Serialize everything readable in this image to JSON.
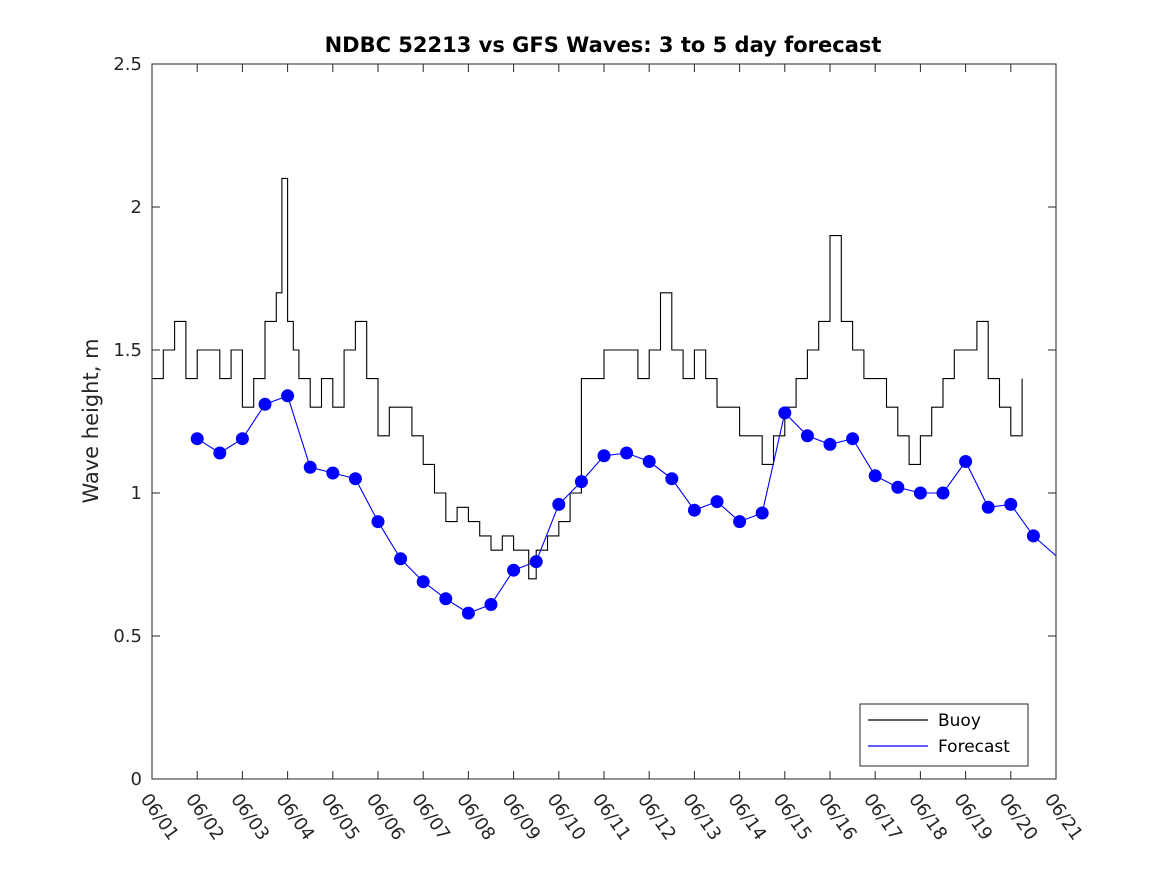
{
  "chart_data": {
    "type": "line",
    "title": "NDBC 52213 vs GFS Waves: 3 to 5 day forecast",
    "xlabel": "",
    "ylabel": "Wave height, m",
    "xlim": [
      "06/01",
      "06/21"
    ],
    "ylim": [
      0,
      2.5
    ],
    "xticks": [
      "06/01",
      "06/02",
      "06/03",
      "06/04",
      "06/05",
      "06/06",
      "06/07",
      "06/08",
      "06/09",
      "06/10",
      "06/11",
      "06/12",
      "06/13",
      "06/14",
      "06/15",
      "06/16",
      "06/17",
      "06/18",
      "06/19",
      "06/20",
      "06/21"
    ],
    "yticks": [
      "0",
      "0.5",
      "1",
      "1.5",
      "2",
      "2.5"
    ],
    "grid": false,
    "legend_position": "bottom-right",
    "series": [
      {
        "name": "Buoy",
        "color": "#000000",
        "style": "line",
        "x": [
          "06/01 00:00",
          "06/01 06:00",
          "06/01 12:00",
          "06/01 18:00",
          "06/02 00:00",
          "06/02 06:00",
          "06/02 12:00",
          "06/02 18:00",
          "06/03 00:00",
          "06/03 06:00",
          "06/03 12:00",
          "06/03 18:00",
          "06/03 21:00",
          "06/04 00:00",
          "06/04 03:00",
          "06/04 06:00",
          "06/04 12:00",
          "06/04 18:00",
          "06/05 00:00",
          "06/05 06:00",
          "06/05 12:00",
          "06/05 18:00",
          "06/06 00:00",
          "06/06 06:00",
          "06/06 12:00",
          "06/06 18:00",
          "06/07 00:00",
          "06/07 06:00",
          "06/07 12:00",
          "06/07 18:00",
          "06/08 00:00",
          "06/08 06:00",
          "06/08 12:00",
          "06/08 18:00",
          "06/09 00:00",
          "06/09 06:00",
          "06/09 08:00",
          "06/09 12:00",
          "06/09 18:00",
          "06/10 00:00",
          "06/10 06:00",
          "06/10 12:00",
          "06/10 18:00",
          "06/11 00:00",
          "06/11 06:00",
          "06/11 12:00",
          "06/11 18:00",
          "06/12 00:00",
          "06/12 06:00",
          "06/12 12:00",
          "06/12 18:00",
          "06/13 00:00",
          "06/13 06:00",
          "06/13 12:00",
          "06/13 18:00",
          "06/14 00:00",
          "06/14 06:00",
          "06/14 12:00",
          "06/14 18:00",
          "06/15 00:00",
          "06/15 06:00",
          "06/15 12:00",
          "06/15 18:00",
          "06/16 00:00",
          "06/16 06:00",
          "06/16 12:00",
          "06/16 18:00",
          "06/17 00:00",
          "06/17 06:00",
          "06/17 12:00",
          "06/17 18:00",
          "06/18 00:00",
          "06/18 06:00",
          "06/18 12:00",
          "06/18 18:00",
          "06/19 00:00",
          "06/19 06:00",
          "06/19 12:00",
          "06/19 18:00",
          "06/20 00:00",
          "06/20 06:00"
        ],
        "values": [
          1.4,
          1.5,
          1.6,
          1.4,
          1.5,
          1.5,
          1.4,
          1.5,
          1.3,
          1.4,
          1.6,
          1.7,
          2.1,
          1.6,
          1.5,
          1.4,
          1.3,
          1.4,
          1.3,
          1.5,
          1.6,
          1.4,
          1.2,
          1.3,
          1.3,
          1.2,
          1.1,
          1.0,
          0.9,
          0.95,
          0.9,
          0.85,
          0.8,
          0.85,
          0.8,
          0.8,
          0.7,
          0.8,
          0.85,
          0.9,
          1.0,
          1.4,
          1.4,
          1.5,
          1.5,
          1.5,
          1.4,
          1.5,
          1.7,
          1.5,
          1.4,
          1.5,
          1.4,
          1.3,
          1.3,
          1.2,
          1.2,
          1.1,
          1.2,
          1.3,
          1.4,
          1.5,
          1.6,
          1.9,
          1.6,
          1.5,
          1.4,
          1.4,
          1.3,
          1.2,
          1.1,
          1.2,
          1.3,
          1.4,
          1.5,
          1.5,
          1.6,
          1.4,
          1.3,
          1.2,
          1.4
        ]
      },
      {
        "name": "Forecast",
        "color": "#0000ff",
        "style": "line+markers",
        "x": [
          "06/02 00:00",
          "06/02 12:00",
          "06/03 00:00",
          "06/03 12:00",
          "06/04 00:00",
          "06/04 12:00",
          "06/05 00:00",
          "06/05 12:00",
          "06/06 00:00",
          "06/06 12:00",
          "06/07 00:00",
          "06/07 12:00",
          "06/08 00:00",
          "06/08 12:00",
          "06/09 00:00",
          "06/09 12:00",
          "06/10 00:00",
          "06/10 12:00",
          "06/11 00:00",
          "06/11 12:00",
          "06/12 00:00",
          "06/12 12:00",
          "06/13 00:00",
          "06/13 12:00",
          "06/14 00:00",
          "06/14 12:00",
          "06/15 00:00",
          "06/15 12:00",
          "06/16 00:00",
          "06/16 12:00",
          "06/17 00:00",
          "06/17 12:00",
          "06/18 00:00",
          "06/18 12:00",
          "06/19 00:00",
          "06/19 12:00",
          "06/20 00:00",
          "06/20 12:00",
          "06/21 00:00"
        ],
        "values": [
          1.19,
          1.14,
          1.19,
          1.31,
          1.34,
          1.09,
          1.07,
          1.05,
          0.9,
          0.77,
          0.69,
          0.63,
          0.58,
          0.61,
          0.73,
          0.76,
          0.96,
          1.04,
          1.13,
          1.14,
          1.11,
          1.05,
          0.94,
          0.97,
          0.9,
          0.93,
          1.28,
          1.2,
          1.17,
          1.19,
          1.06,
          1.02,
          1.0,
          1.0,
          1.11,
          0.95,
          0.96,
          0.85,
          0.78
        ]
      }
    ]
  }
}
